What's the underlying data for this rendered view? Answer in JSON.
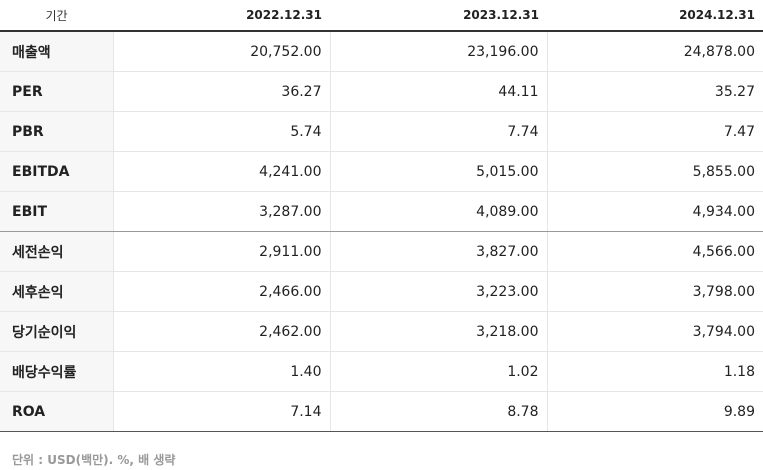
{
  "table": {
    "headers": [
      "기간",
      "2022.12.31",
      "2023.12.31",
      "2024.12.31"
    ],
    "rows": [
      {
        "label": "매출액",
        "values": [
          "20,752.00",
          "23,196.00",
          "24,878.00"
        ]
      },
      {
        "label": "PER",
        "values": [
          "36.27",
          "44.11",
          "35.27"
        ]
      },
      {
        "label": "PBR",
        "values": [
          "5.74",
          "7.74",
          "7.47"
        ]
      },
      {
        "label": "EBITDA",
        "values": [
          "4,241.00",
          "5,015.00",
          "5,855.00"
        ]
      },
      {
        "label": "EBIT",
        "values": [
          "3,287.00",
          "4,089.00",
          "4,934.00"
        ]
      },
      {
        "label": "세전손익",
        "values": [
          "2,911.00",
          "3,827.00",
          "4,566.00"
        ]
      },
      {
        "label": "세후손익",
        "values": [
          "2,466.00",
          "3,223.00",
          "3,798.00"
        ]
      },
      {
        "label": "당기순이익",
        "values": [
          "2,462.00",
          "3,218.00",
          "3,794.00"
        ]
      },
      {
        "label": "배당수익률",
        "values": [
          "1.40",
          "1.02",
          "1.18"
        ]
      },
      {
        "label": "ROA",
        "values": [
          "7.14",
          "8.78",
          "9.89"
        ]
      }
    ]
  },
  "footnote": "단위 : USD(백만). %, 배 생략"
}
